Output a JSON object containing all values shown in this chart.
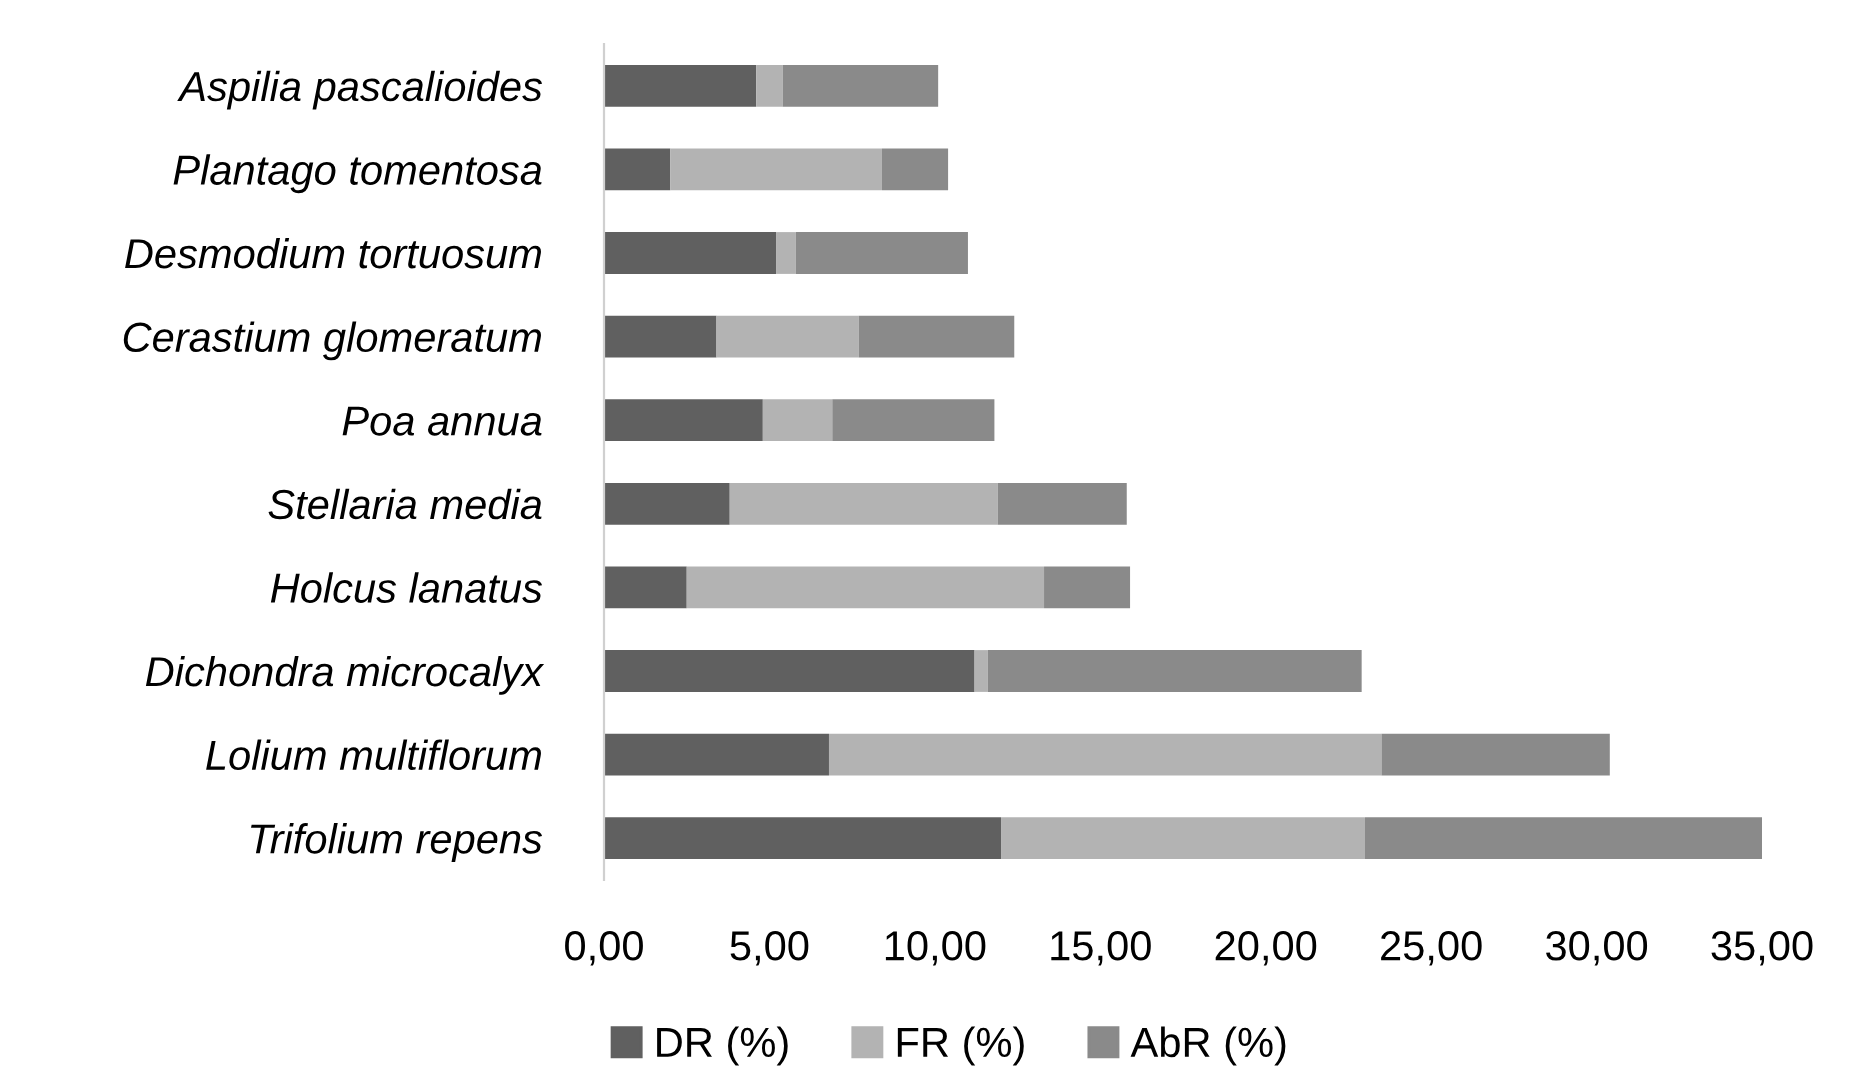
{
  "chart_data": {
    "type": "bar",
    "orientation": "horizontal",
    "stacked": true,
    "categories": [
      "Aspilia pascalioides",
      "Plantago tomentosa",
      "Desmodium tortuosum",
      "Cerastium glomeratum",
      "Poa annua",
      "Stellaria media",
      "Holcus lanatus",
      "Dichondra microcalyx",
      "Lolium multiflorum",
      "Trifolium repens"
    ],
    "series": [
      {
        "name": "DR (%)",
        "color": "#606060",
        "values": [
          4.6,
          2.0,
          5.2,
          3.4,
          4.8,
          3.8,
          2.5,
          11.2,
          6.8,
          12.0
        ]
      },
      {
        "name": "FR (%)",
        "color": "#b3b3b3",
        "values": [
          0.8,
          6.4,
          0.6,
          4.3,
          2.1,
          8.1,
          10.8,
          0.4,
          16.7,
          11.0
        ]
      },
      {
        "name": "AbR (%)",
        "color": "#8a8a8a",
        "values": [
          4.7,
          2.0,
          5.2,
          4.7,
          4.9,
          3.9,
          2.6,
          11.3,
          6.9,
          12.1
        ]
      }
    ],
    "xlim": [
      0,
      35
    ],
    "xticks": [
      {
        "value": 0,
        "label": "0,00"
      },
      {
        "value": 5,
        "label": "5,00"
      },
      {
        "value": 10,
        "label": "10,00"
      },
      {
        "value": 15,
        "label": "15,00"
      },
      {
        "value": 20,
        "label": "20,00"
      },
      {
        "value": 25,
        "label": "25,00"
      },
      {
        "value": 30,
        "label": "30,00"
      },
      {
        "value": 35,
        "label": "35,00"
      }
    ],
    "grid": false,
    "legend": "bottom"
  }
}
